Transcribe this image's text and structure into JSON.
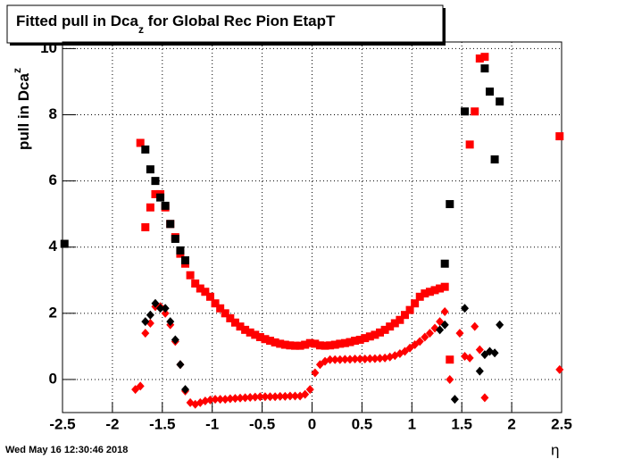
{
  "chart_data": {
    "type": "scatter",
    "title": {
      "main": "Fitted pull in Dca",
      "sub": "z",
      "rest": " for Global Rec Pion EtapT"
    },
    "y_label": {
      "main": "pull in Dca",
      "sub": "z"
    },
    "x_label": "η",
    "timestamp": "Wed May 16 12:30:46 2018",
    "xlim": [
      -2.5,
      2.5
    ],
    "ylim": [
      -1,
      10.2
    ],
    "xticks": [
      -2.5,
      -2,
      -1.5,
      -1,
      -0.5,
      0,
      0.5,
      1,
      1.5,
      2,
      2.5
    ],
    "yticks": [
      0,
      2,
      4,
      6,
      8,
      10
    ],
    "grid": true,
    "series": [
      {
        "color": "#ff0000",
        "marker": "square",
        "x": [
          -1.72,
          -1.67,
          -1.62,
          -1.57,
          -1.52,
          -1.47,
          -1.42,
          -1.37,
          -1.32,
          -1.27,
          -1.22,
          -1.17,
          -1.12,
          -1.07,
          -1.02,
          -0.97,
          -0.92,
          -0.87,
          -0.82,
          -0.77,
          -0.72,
          -0.67,
          -0.62,
          -0.57,
          -0.52,
          -0.47,
          -0.42,
          -0.37,
          -0.32,
          -0.27,
          -0.22,
          -0.17,
          -0.12,
          -0.07,
          -0.02,
          0.03,
          0.08,
          0.13,
          0.18,
          0.23,
          0.28,
          0.33,
          0.38,
          0.43,
          0.48,
          0.53,
          0.58,
          0.63,
          0.68,
          0.73,
          0.78,
          0.83,
          0.88,
          0.93,
          0.98,
          1.03,
          1.08,
          1.13,
          1.18,
          1.23,
          1.28,
          1.33,
          1.38,
          1.58,
          1.63,
          1.68,
          1.73,
          2.48
        ],
        "values": [
          7.15,
          4.6,
          5.2,
          5.6,
          5.6,
          5.2,
          4.7,
          4.3,
          3.8,
          3.5,
          3.15,
          2.9,
          2.75,
          2.65,
          2.5,
          2.3,
          2.15,
          2.0,
          1.85,
          1.72,
          1.6,
          1.5,
          1.42,
          1.35,
          1.28,
          1.22,
          1.17,
          1.12,
          1.08,
          1.05,
          1.03,
          1.02,
          1.02,
          1.05,
          1.1,
          1.08,
          1.03,
          1.02,
          1.03,
          1.05,
          1.08,
          1.1,
          1.13,
          1.17,
          1.2,
          1.25,
          1.3,
          1.35,
          1.42,
          1.5,
          1.6,
          1.7,
          1.8,
          1.95,
          2.1,
          2.3,
          2.5,
          2.6,
          2.65,
          2.7,
          2.75,
          2.8,
          0.6,
          7.1,
          8.1,
          9.7,
          9.75,
          7.35
        ]
      },
      {
        "color": "#000000",
        "marker": "square",
        "x": [
          -2.48,
          -1.67,
          -1.62,
          -1.57,
          -1.52,
          -1.47,
          -1.42,
          -1.37,
          -1.32,
          -1.27,
          1.33,
          1.38,
          1.53,
          1.73,
          1.78,
          1.83,
          1.88
        ],
        "values": [
          4.1,
          6.95,
          6.35,
          6.0,
          5.5,
          5.25,
          4.7,
          4.25,
          3.9,
          3.6,
          3.5,
          5.3,
          8.1,
          9.4,
          8.7,
          6.65,
          8.4
        ]
      },
      {
        "color": "#ff0000",
        "marker": "diamond",
        "x": [
          -1.77,
          -1.72,
          -1.67,
          -1.62,
          -1.57,
          -1.52,
          -1.47,
          -1.42,
          -1.37,
          -1.32,
          -1.27,
          -1.22,
          -1.17,
          -1.12,
          -1.07,
          -1.02,
          -0.97,
          -0.92,
          -0.87,
          -0.82,
          -0.77,
          -0.72,
          -0.67,
          -0.62,
          -0.57,
          -0.52,
          -0.47,
          -0.42,
          -0.37,
          -0.32,
          -0.27,
          -0.22,
          -0.17,
          -0.12,
          -0.07,
          -0.02,
          0.03,
          0.08,
          0.13,
          0.18,
          0.23,
          0.28,
          0.33,
          0.38,
          0.43,
          0.48,
          0.53,
          0.58,
          0.63,
          0.68,
          0.73,
          0.78,
          0.83,
          0.88,
          0.93,
          0.98,
          1.03,
          1.08,
          1.13,
          1.18,
          1.23,
          1.28,
          1.33,
          1.38,
          1.48,
          1.53,
          1.58,
          1.63,
          1.68,
          1.73,
          2.48
        ],
        "values": [
          -0.3,
          -0.2,
          1.4,
          1.7,
          2.2,
          2.2,
          2.0,
          1.65,
          1.15,
          0.45,
          -0.35,
          -0.7,
          -0.75,
          -0.7,
          -0.65,
          -0.62,
          -0.6,
          -0.6,
          -0.6,
          -0.58,
          -0.57,
          -0.56,
          -0.55,
          -0.54,
          -0.53,
          -0.52,
          -0.52,
          -0.52,
          -0.52,
          -0.51,
          -0.51,
          -0.5,
          -0.5,
          -0.5,
          -0.45,
          -0.3,
          0.2,
          0.45,
          0.55,
          0.6,
          0.6,
          0.6,
          0.61,
          0.61,
          0.62,
          0.62,
          0.62,
          0.63,
          0.63,
          0.64,
          0.65,
          0.68,
          0.72,
          0.78,
          0.85,
          0.95,
          1.05,
          1.15,
          1.28,
          1.4,
          1.55,
          1.75,
          2.05,
          0.0,
          1.4,
          0.7,
          0.65,
          1.6,
          0.9,
          -0.55,
          0.3
        ]
      },
      {
        "color": "#000000",
        "marker": "diamond",
        "x": [
          -1.67,
          -1.62,
          -1.57,
          -1.52,
          -1.47,
          -1.42,
          -1.37,
          -1.32,
          -1.27,
          1.28,
          1.33,
          1.43,
          1.53,
          1.68,
          1.73,
          1.78,
          1.83,
          1.88
        ],
        "values": [
          1.75,
          1.95,
          2.3,
          2.15,
          2.15,
          1.75,
          1.2,
          0.45,
          -0.3,
          1.5,
          1.65,
          -0.6,
          2.15,
          0.25,
          0.75,
          0.85,
          0.8,
          1.65
        ]
      }
    ]
  }
}
